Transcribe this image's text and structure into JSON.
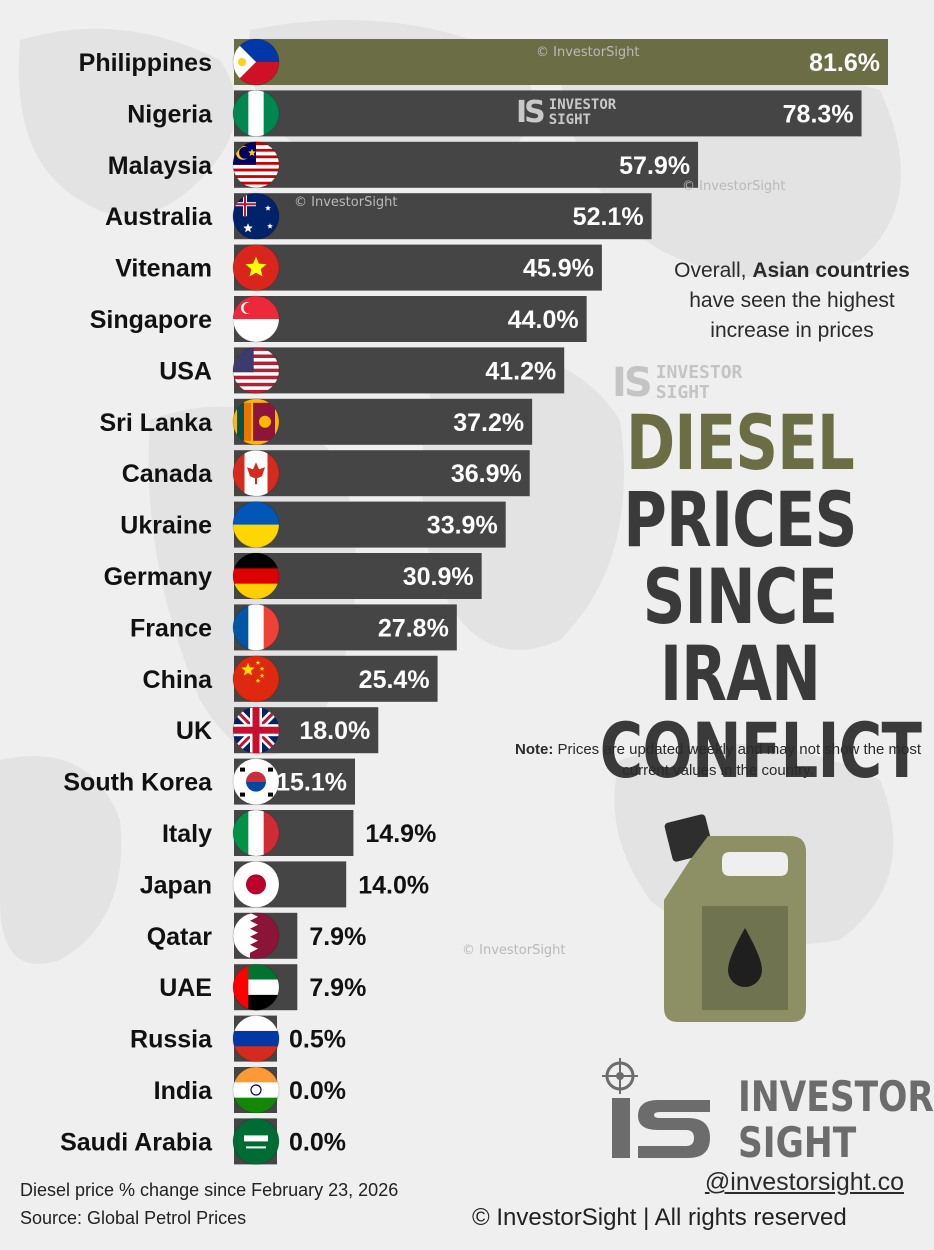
{
  "chart_data": {
    "type": "bar",
    "orientation": "horizontal",
    "title": [
      "DIESEL",
      "PRICES",
      "SINCE IRAN",
      "CONFLICT"
    ],
    "subtitle": "Diesel price % change since February 23, 2026",
    "source": "Source: Global Petrol Prices",
    "categories": [
      "Philippines",
      "Nigeria",
      "Malaysia",
      "Australia",
      "Vitenam",
      "Singapore",
      "USA",
      "Sri Lanka",
      "Canada",
      "Ukraine",
      "Germany",
      "France",
      "China",
      "UK",
      "South Korea",
      "Italy",
      "Japan",
      "Qatar",
      "UAE",
      "Russia",
      "India",
      "Saudi Arabia"
    ],
    "values": [
      81.6,
      78.3,
      57.9,
      52.1,
      45.9,
      44.0,
      41.2,
      37.2,
      36.9,
      33.9,
      30.9,
      27.8,
      25.4,
      18.0,
      15.1,
      14.9,
      14.0,
      7.9,
      7.9,
      0.5,
      0.0,
      0.0
    ],
    "value_labels": [
      "81.6%",
      "78.3%",
      "57.9%",
      "52.1%",
      "45.9%",
      "44.0%",
      "41.2%",
      "37.2%",
      "36.9%",
      "33.9%",
      "30.9%",
      "27.8%",
      "25.4%",
      "18.0%",
      "15.1%",
      "14.9%",
      "14.0%",
      "7.9%",
      "7.9%",
      "0.5%",
      "0.0%",
      "0.0%"
    ],
    "xlim": [
      0,
      81.6
    ],
    "grid": false,
    "colors": {
      "highlight": "#6b6e45",
      "bar": "#454545",
      "background": "#efefef"
    }
  },
  "annotation": {
    "callout_pre": "Overall, ",
    "callout_bold": "Asian countries",
    "callout_post": "have seen the highest increase in prices",
    "note_bold": "Note:",
    "note_text": " Prices are updated weekly and may not show the most current values in the country."
  },
  "watermarks": {
    "copyright": "© InvestorSight",
    "logo_mark": "IS",
    "logo_line1": "INVESTOR",
    "logo_line2": "SIGHT"
  },
  "branding": {
    "name_line1": "INVESTOR",
    "name_line2": "SIGHT",
    "handle": "@investorsight.co",
    "rights": "© InvestorSight |  All rights reserved"
  },
  "flags": {
    "Philippines": "philippines-flag-icon",
    "Nigeria": "nigeria-flag-icon",
    "Malaysia": "malaysia-flag-icon",
    "Australia": "australia-flag-icon",
    "Vitenam": "vietnam-flag-icon",
    "Singapore": "singapore-flag-icon",
    "USA": "usa-flag-icon",
    "Sri Lanka": "sri-lanka-flag-icon",
    "Canada": "canada-flag-icon",
    "Ukraine": "ukraine-flag-icon",
    "Germany": "germany-flag-icon",
    "France": "france-flag-icon",
    "China": "china-flag-icon",
    "UK": "uk-flag-icon",
    "South Korea": "south-korea-flag-icon",
    "Italy": "italy-flag-icon",
    "Japan": "japan-flag-icon",
    "Qatar": "qatar-flag-icon",
    "UAE": "uae-flag-icon",
    "Russia": "russia-flag-icon",
    "India": "india-flag-icon",
    "Saudi Arabia": "saudi-arabia-flag-icon"
  }
}
